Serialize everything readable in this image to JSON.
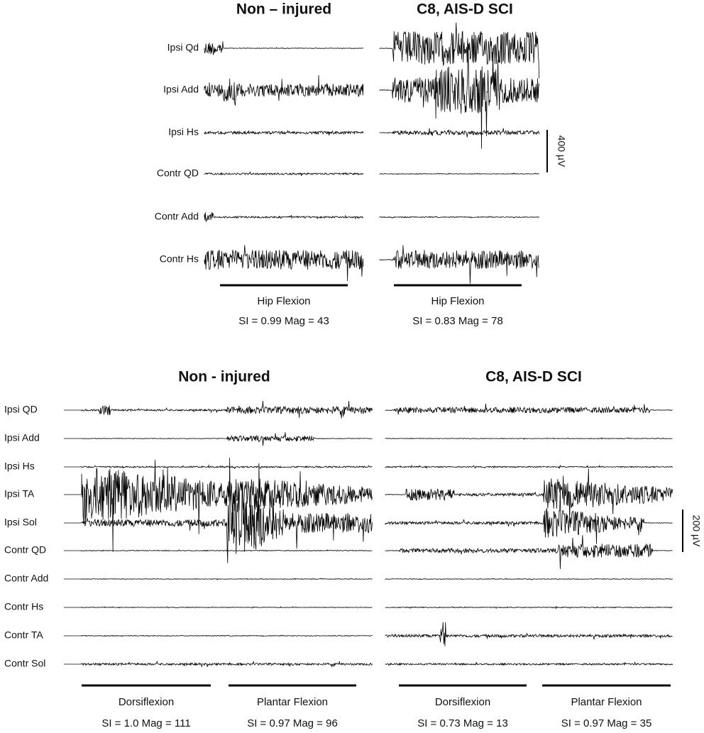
{
  "panels": [
    {
      "columns": [
        {
          "title": "Non – injured",
          "tasks": [
            {
              "label": "Hip Flexion",
              "stats": "SI = 0.99  Mag = 43"
            }
          ]
        },
        {
          "title": "C8, AIS-D SCI",
          "tasks": [
            {
              "label": "Hip Flexion",
              "stats": "SI = 0.83  Mag = 78"
            }
          ]
        }
      ],
      "muscles": [
        "Ipsi Qd",
        "Ipsi Add",
        "Ipsi Hs",
        "Contr QD",
        "Contr Add",
        "Contr Hs"
      ],
      "scale_bar": "400 µV"
    },
    {
      "columns": [
        {
          "title": "Non - injured",
          "tasks": [
            {
              "label": "Dorsiflexion",
              "stats": "SI = 1.0  Mag = 111"
            },
            {
              "label": "Plantar Flexion",
              "stats": "SI = 0.97  Mag = 96"
            }
          ]
        },
        {
          "title": "C8, AIS-D SCI",
          "tasks": [
            {
              "label": "Dorsiflexion",
              "stats": "SI = 0.73  Mag = 13"
            },
            {
              "label": "Plantar Flexion",
              "stats": "SI = 0.97  Mag = 35"
            }
          ]
        }
      ],
      "muscles": [
        "Ipsi QD",
        "Ipsi Add",
        "Ipsi Hs",
        "Ipsi TA",
        "Ipsi Sol",
        "Contr QD",
        "Contr Add",
        "Contr Hs",
        "Contr TA",
        "Contr Sol"
      ],
      "scale_bar": "200 µV"
    }
  ]
}
